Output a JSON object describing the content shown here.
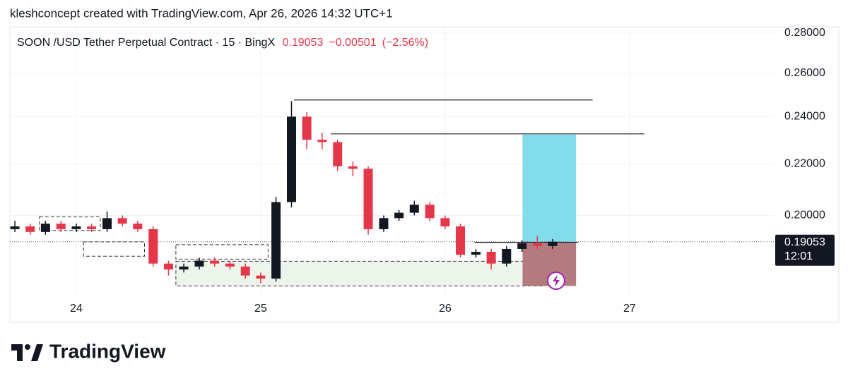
{
  "header": {
    "attribution": "kleshconcept created with TradingView.com, Apr 26, 2026 14:32 UTC+1"
  },
  "chart_data": {
    "type": "candlestick",
    "title": "SOON /USD Tether Perpetual Contract · 15 · BingX",
    "change": {
      "value": -0.00501,
      "label": "−0.00501"
    },
    "change_percent": {
      "value": -2.56,
      "label": "(−2.56%)"
    },
    "countdown": "12:01",
    "x": [
      23.667,
      23.75,
      23.833,
      23.917,
      24.0,
      24.083,
      24.167,
      24.25,
      24.333,
      24.417,
      24.5,
      24.583,
      24.667,
      24.75,
      24.833,
      24.917,
      25.0,
      25.083,
      25.167,
      25.25,
      25.333,
      25.417,
      25.5,
      25.583,
      25.667,
      25.75,
      25.833,
      25.917,
      26.0,
      26.083,
      26.167,
      26.25,
      26.333,
      26.417,
      26.5,
      26.583
    ],
    "open": [
      0.195,
      0.196,
      0.194,
      0.197,
      0.195,
      0.196,
      0.195,
      0.199,
      0.197,
      0.195,
      0.183,
      0.181,
      0.182,
      0.184,
      0.183,
      0.182,
      0.179,
      0.178,
      0.205,
      0.24,
      0.23,
      0.229,
      0.219,
      0.218,
      0.195,
      0.199,
      0.201,
      0.204,
      0.199,
      0.196,
      0.186,
      0.187,
      0.183,
      0.188,
      0.19,
      0.189
    ],
    "high": [
      0.198,
      0.197,
      0.198,
      0.198,
      0.197,
      0.197,
      0.2015,
      0.2,
      0.198,
      0.196,
      0.184,
      0.183,
      0.185,
      0.185,
      0.184,
      0.183,
      0.18,
      0.207,
      0.247,
      0.242,
      0.233,
      0.23,
      0.221,
      0.219,
      0.2,
      0.202,
      0.2055,
      0.205,
      0.2,
      0.197,
      0.188,
      0.188,
      0.189,
      0.191,
      0.1925,
      0.1915
    ],
    "low": [
      0.194,
      0.193,
      0.193,
      0.194,
      0.194,
      0.194,
      0.194,
      0.196,
      0.194,
      0.182,
      0.179,
      0.18,
      0.181,
      0.182,
      0.181,
      0.178,
      0.1765,
      0.177,
      0.203,
      0.226,
      0.226,
      0.217,
      0.215,
      0.193,
      0.194,
      0.198,
      0.2,
      0.198,
      0.195,
      0.185,
      0.185,
      0.181,
      0.182,
      0.187,
      0.188,
      0.188
    ],
    "close": [
      0.196,
      0.194,
      0.197,
      0.195,
      0.196,
      0.195,
      0.199,
      0.197,
      0.195,
      0.183,
      0.181,
      0.182,
      0.184,
      0.183,
      0.182,
      0.179,
      0.178,
      0.205,
      0.24,
      0.23,
      0.229,
      0.219,
      0.218,
      0.195,
      0.199,
      0.201,
      0.204,
      0.199,
      0.196,
      0.186,
      0.187,
      0.183,
      0.188,
      0.19,
      0.189,
      0.19053
    ],
    "up_color": "#131722",
    "down_color": "#e5374a",
    "xlim": [
      23.64,
      27.79
    ],
    "xticks": [
      24,
      25,
      26,
      27
    ],
    "ylim": [
      0.1644,
      0.2833
    ],
    "log_scale": true,
    "yticks": [
      {
        "value": 0.2,
        "label": "0.20000"
      },
      {
        "value": 0.22,
        "label": "0.22000"
      },
      {
        "value": 0.24,
        "label": "0.24000"
      },
      {
        "value": 0.26,
        "label": "0.26000"
      },
      {
        "value": 0.28,
        "label": "0.28000"
      }
    ],
    "grid": true,
    "levels": [
      {
        "x": [
          25.18,
          26.8
        ],
        "y": 0.2475
      },
      {
        "x": [
          25.38,
          27.08
        ],
        "y": 0.2325
      },
      {
        "x": [
          26.16,
          26.72
        ],
        "y": 0.1903
      }
    ],
    "zones": [
      {
        "x": [
          23.8,
          24.13
        ],
        "y": [
          0.1945,
          0.1995
        ]
      },
      {
        "x": [
          24.04,
          24.37
        ],
        "y": [
          0.1855,
          0.1905
        ]
      },
      {
        "x": [
          24.54,
          25.04
        ],
        "y": [
          0.1845,
          0.1895
        ]
      },
      {
        "x": [
          24.54,
          26.54
        ],
        "y": [
          0.1756,
          0.1838
        ],
        "color": "#edf4ec"
      }
    ],
    "position": {
      "x": [
        26.42,
        26.71
      ],
      "entry": 0.1901,
      "target": 0.2322,
      "stop": 0.1756,
      "target_color": "#82dbe9",
      "stop_color": "#b57a80"
    }
  },
  "footer": {
    "brand": "TradingView"
  }
}
